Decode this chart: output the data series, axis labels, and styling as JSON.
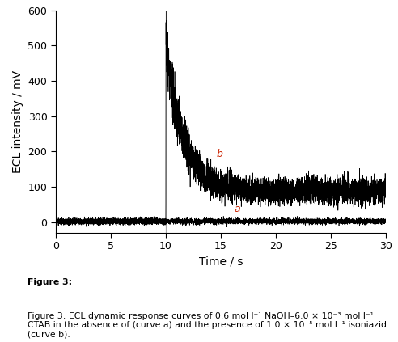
{
  "xlabel": "Time / s",
  "ylabel": "ECL intensity / mV",
  "xlim": [
    0,
    30
  ],
  "ylim": [
    -30,
    600
  ],
  "yticks": [
    0,
    100,
    200,
    300,
    400,
    500,
    600
  ],
  "xticks": [
    0,
    5,
    10,
    15,
    20,
    25,
    30
  ],
  "curve_a_color": "#000000",
  "curve_b_color": "#000000",
  "label_a_color": "#cc2200",
  "label_b_color": "#cc2200",
  "trigger_time": 10.0,
  "peak_value": 515,
  "decay_tau": 1.5,
  "baseline_b": 88,
  "noise_b_amplitude": 18,
  "noise_a_amplitude": 4,
  "baseline_a": 2,
  "figsize": [
    4.92,
    4.23
  ],
  "dpi": 100,
  "caption_bold": "Figure 3:",
  "caption_normal": " ECL dynamic response curves of 0.6 mol l⁻¹ NaOH–6.0 × 10⁻³ mol l⁻¹\nCTAB in the absence of (curve a) and the presence of 1.0 × 10⁻⁵ mol l⁻¹ isoniazid\n(curve b)."
}
